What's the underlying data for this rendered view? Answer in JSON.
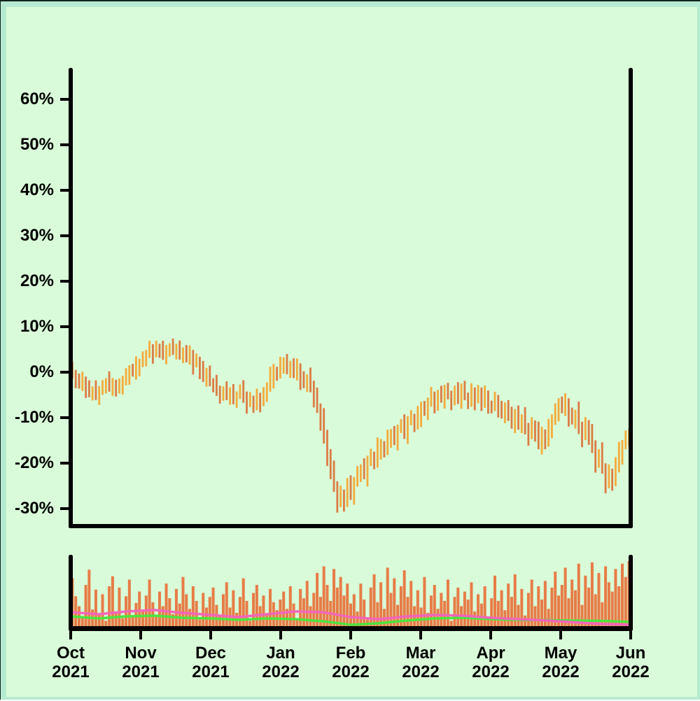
{
  "figure": {
    "background": "#d9fbd9",
    "frame_band": "#b7ead2",
    "edge_line": "#10251c"
  },
  "chart_data": {
    "type": "candlestick",
    "panels": [
      "price_pct_change",
      "volume"
    ],
    "x_axis": {
      "ticks": [
        {
          "month": "Oct",
          "year": "2021"
        },
        {
          "month": "Nov",
          "year": "2021"
        },
        {
          "month": "Dec",
          "year": "2021"
        },
        {
          "month": "Jan",
          "year": "2022"
        },
        {
          "month": "Feb",
          "year": "2022"
        },
        {
          "month": "Mar",
          "year": "2022"
        },
        {
          "month": "Apr",
          "year": "2022"
        },
        {
          "month": "May",
          "year": "2022"
        },
        {
          "month": "Jun",
          "year": "2022"
        }
      ]
    },
    "y_axis": {
      "tick_labels": [
        "60%",
        "50%",
        "40%",
        "30%",
        "20%",
        "10%",
        "0%",
        "-10%",
        "-20%",
        "-30%"
      ],
      "tick_values": [
        60,
        50,
        40,
        30,
        20,
        10,
        0,
        -10,
        -20,
        -30
      ],
      "ylim": [
        -33.8,
        66.6
      ]
    },
    "series": {
      "close_pct": [
        -0.4,
        -1.6,
        -2.8,
        -2.0,
        -3.4,
        -4.6,
        -3.8,
        -5.0,
        -4.2,
        -3.2,
        -2.2,
        -3.3,
        -2.5,
        -4.0,
        -3.1,
        -1.9,
        -0.8,
        0.6,
        -0.2,
        1.2,
        2.0,
        3.0,
        4.2,
        5.0,
        4.1,
        5.4,
        4.6,
        3.7,
        4.7,
        5.6,
        4.5,
        5.2,
        3.8,
        4.6,
        3.0,
        3.8,
        1.9,
        2.6,
        0.4,
        -1.0,
        -0.2,
        -2.2,
        -3.0,
        -4.2,
        -5.0,
        -3.9,
        -5.4,
        -4.4,
        -6.0,
        -5.1,
        -4.0,
        -5.3,
        -6.8,
        -5.9,
        -7.2,
        -5.7,
        -6.6,
        -4.9,
        -3.2,
        -1.4,
        0.4,
        -0.6,
        1.4,
        2.2,
        0.6,
        1.6,
        -0.4,
        0.8,
        -1.4,
        -2.6,
        -1.2,
        -3.2,
        -5.2,
        -8.0,
        -11.0,
        -14.4,
        -18.0,
        -21.8,
        -25.4,
        -28.6,
        -26.8,
        -28.6,
        -25.0,
        -26.6,
        -24.2,
        -22.4,
        -21.0,
        -22.4,
        -19.8,
        -18.4,
        -19.8,
        -17.2,
        -16.0,
        -17.4,
        -14.8,
        -13.6,
        -15.0,
        -12.6,
        -11.6,
        -13.2,
        -10.8,
        -9.9,
        -11.4,
        -9.6,
        -7.8,
        -8.8,
        -6.6,
        -5.6,
        -7.0,
        -4.8,
        -6.0,
        -4.0,
        -5.0,
        -6.4,
        -4.4,
        -5.6,
        -3.6,
        -5.2,
        -6.4,
        -4.6,
        -6.0,
        -4.4,
        -6.8,
        -5.4,
        -7.0,
        -7.8,
        -6.2,
        -8.0,
        -9.2,
        -7.6,
        -9.8,
        -11.0,
        -9.2,
        -11.6,
        -10.0,
        -12.4,
        -13.8,
        -11.6,
        -13.6,
        -15.8,
        -13.5,
        -15.5,
        -12.5,
        -10.5,
        -8.7,
        -6.7,
        -8.2,
        -6.9,
        -9.4,
        -10.6,
        -9.0,
        -12.2,
        -14.0,
        -11.6,
        -14.2,
        -16.6,
        -19.6,
        -17.8,
        -21.4,
        -24.4,
        -22.2,
        -24.0,
        -20.4,
        -17.9,
        -16.0,
        -14.5,
        -13.2
      ],
      "first_open": 0.6,
      "open_rule": "previous_close",
      "wick_up_pattern": [
        1.7,
        0.9,
        1.3,
        2.2,
        1.0,
        1.6,
        0.7,
        2.0,
        1.2,
        1.5,
        0.9,
        2.4,
        1.3,
        0.8,
        1.8,
        1.1
      ],
      "wick_down_pattern": [
        1.0,
        1.9,
        0.8,
        1.4,
        2.2,
        0.9,
        1.7,
        1.1,
        2.3,
        0.8,
        1.5,
        1.0,
        2.0,
        1.3,
        0.7,
        1.8
      ],
      "wick_scale_base": 0.85,
      "wick_scale_per_move": 0.13,
      "volume_rel": [
        0.72,
        0.45,
        0.3,
        0.15,
        0.62,
        0.85,
        0.25,
        0.55,
        0.18,
        0.48,
        0.08,
        0.6,
        0.75,
        0.22,
        0.58,
        0.12,
        0.45,
        0.7,
        0.15,
        0.35,
        0.52,
        0.24,
        0.46,
        0.7,
        0.36,
        0.14,
        0.52,
        0.3,
        0.64,
        0.42,
        0.18,
        0.56,
        0.34,
        0.74,
        0.48,
        0.26,
        0.6,
        0.38,
        0.1,
        0.5,
        0.28,
        0.44,
        0.58,
        0.32,
        0.16,
        0.48,
        0.66,
        0.28,
        0.54,
        0.2,
        0.44,
        0.72,
        0.38,
        0.08,
        0.5,
        0.62,
        0.3,
        0.46,
        0.18,
        0.56,
        0.36,
        0.24,
        0.4,
        0.52,
        0.26,
        0.6,
        0.34,
        0.12,
        0.56,
        0.42,
        0.68,
        0.3,
        0.5,
        0.8,
        0.44,
        0.9,
        0.62,
        0.38,
        0.86,
        0.58,
        0.74,
        0.46,
        0.64,
        0.34,
        0.48,
        0.22,
        0.64,
        0.4,
        0.1,
        0.58,
        0.78,
        0.36,
        0.66,
        0.26,
        0.88,
        0.5,
        0.72,
        0.32,
        0.6,
        0.84,
        0.44,
        0.68,
        0.3,
        0.54,
        0.28,
        0.74,
        0.2,
        0.46,
        0.62,
        0.26,
        0.5,
        0.38,
        0.7,
        0.08,
        0.44,
        0.58,
        0.3,
        0.52,
        0.4,
        0.66,
        0.22,
        0.48,
        0.34,
        0.6,
        0.14,
        0.42,
        0.76,
        0.38,
        0.54,
        0.24,
        0.64,
        0.44,
        0.78,
        0.32,
        0.56,
        0.16,
        0.5,
        0.7,
        0.3,
        0.6,
        0.4,
        0.68,
        0.26,
        0.58,
        0.82,
        0.46,
        0.62,
        0.88,
        0.42,
        0.7,
        0.54,
        0.94,
        0.32,
        0.76,
        0.58,
        0.96,
        0.48,
        0.8,
        0.36,
        0.9,
        0.66,
        0.52,
        0.86,
        0.6,
        0.94,
        0.74,
        0.98
      ],
      "volume_ma_fast_rel": [
        0.2,
        0.17,
        0.21,
        0.23,
        0.19,
        0.16,
        0.13,
        0.17,
        0.21,
        0.2,
        0.13,
        0.1,
        0.14,
        0.16,
        0.15,
        0.12,
        0.1,
        0.08,
        0.055,
        0.03,
        0.02
      ],
      "volume_ma_slow_rel": [
        0.14,
        0.11,
        0.14,
        0.15,
        0.12,
        0.11,
        0.09,
        0.11,
        0.1,
        0.07,
        0.02,
        0.04,
        0.08,
        0.11,
        0.12,
        0.1,
        0.09,
        0.085,
        0.08,
        0.075,
        0.06
      ]
    },
    "colors": {
      "up": "#f4ab3c",
      "down": "#dc7b44",
      "volume_bar": "#e77c47",
      "ma_fast": "#f266bb",
      "ma_slow": "#4ce43e",
      "axis": "#000000"
    }
  }
}
